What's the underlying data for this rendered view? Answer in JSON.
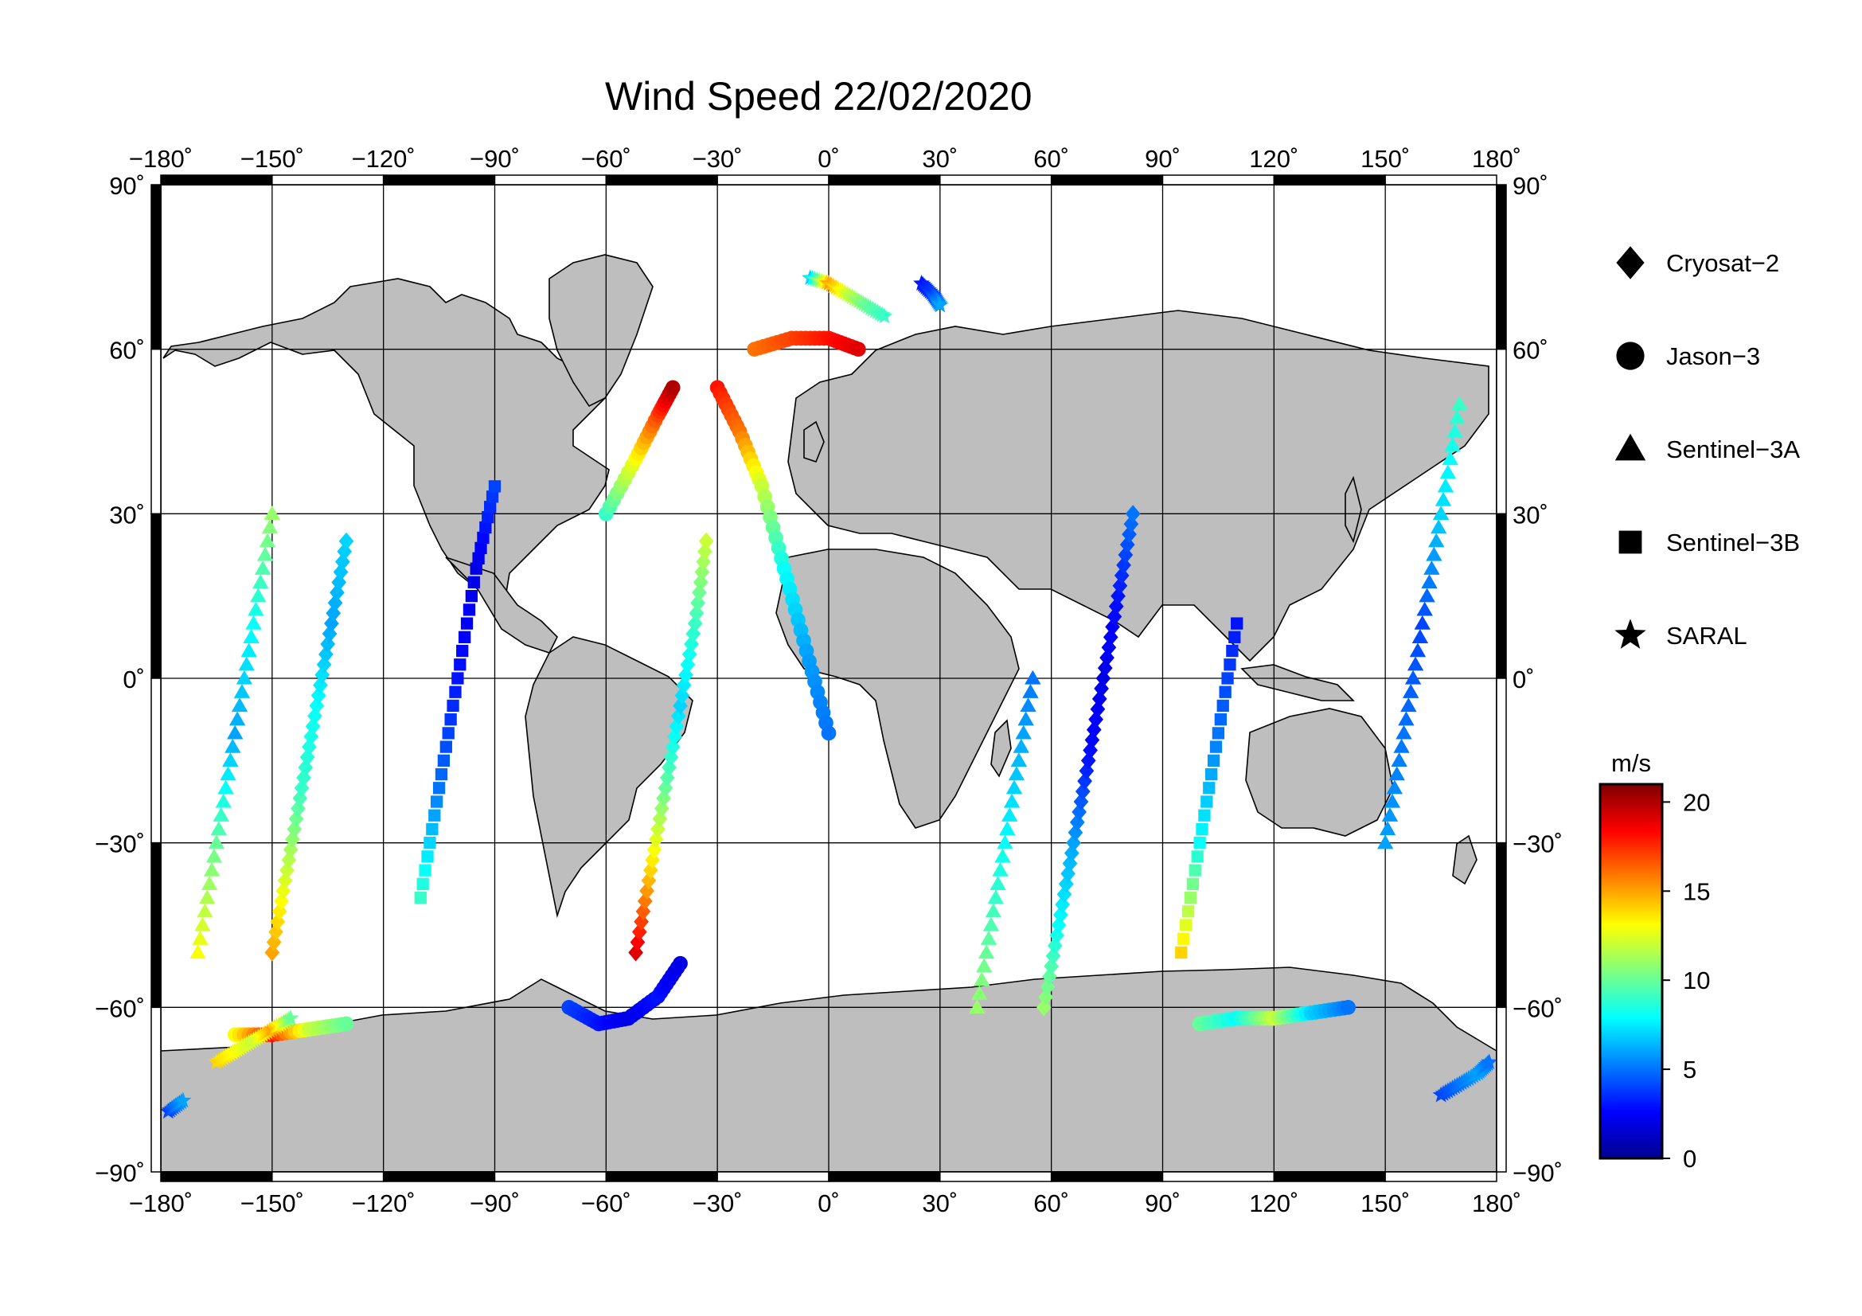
{
  "title": "Wind Speed 22/02/2020",
  "map": {
    "lon_ticks": [
      "−180˚",
      "−150˚",
      "−120˚",
      "−90˚",
      "−60˚",
      "−30˚",
      "0˚",
      "30˚",
      "60˚",
      "90˚",
      "120˚",
      "150˚",
      "180˚"
    ],
    "lat_ticks": [
      "90˚",
      "60˚",
      "30˚",
      "0˚",
      "−30˚",
      "−60˚",
      "−90˚"
    ],
    "lon_range": [
      -180,
      180
    ],
    "lat_range": [
      -90,
      90
    ],
    "grid": true,
    "land_color": "#bebebe",
    "ocean_color": "#ffffff"
  },
  "legend": {
    "items": [
      {
        "label": "Cryosat−2",
        "marker": "diamond"
      },
      {
        "label": "Jason−3",
        "marker": "circle"
      },
      {
        "label": "Sentinel−3A",
        "marker": "triangle"
      },
      {
        "label": "Sentinel−3B",
        "marker": "square"
      },
      {
        "label": "SARAL",
        "marker": "star"
      }
    ]
  },
  "colorbar": {
    "unit": "m/s",
    "ticks": [
      "20",
      "15",
      "10",
      "5",
      "0"
    ],
    "range": [
      0,
      21
    ],
    "colormap": [
      "#00008f",
      "#0000ff",
      "#007fff",
      "#00ffff",
      "#7fff7f",
      "#ffff00",
      "#ff7f00",
      "#ff0000",
      "#7f0000"
    ]
  },
  "chart_data": {
    "type": "scatter",
    "title": "Wind Speed 22/02/2020",
    "xlabel": "",
    "ylabel": "",
    "xlim": [
      -180,
      180
    ],
    "ylim": [
      -90,
      90
    ],
    "value_unit": "m/s",
    "series": [
      {
        "name": "Cryosat−2",
        "marker": "diamond",
        "tracks": [
          {
            "lon": [
              -52,
              -48,
              -44,
              -40,
              -36,
              -33
            ],
            "lat": [
              -50,
              -35,
              -20,
              -5,
              10,
              25
            ],
            "wind": [
              19,
              14,
              10,
              7,
              9,
              12
            ]
          },
          {
            "lon": [
              58,
              62,
              66,
              70,
              74,
              78,
              82
            ],
            "lat": [
              -60,
              -45,
              -30,
              -15,
              0,
              15,
              30
            ],
            "wind": [
              11,
              8,
              6,
              3,
              2,
              3,
              5
            ]
          },
          {
            "lon": [
              -150,
              -146,
              -142,
              -138,
              -134,
              -130
            ],
            "lat": [
              -50,
              -35,
              -20,
              -5,
              10,
              25
            ],
            "wind": [
              15,
              12,
              9,
              8,
              6,
              7
            ]
          }
        ]
      },
      {
        "name": "Jason−3",
        "marker": "circle",
        "tracks": [
          {
            "lon": [
              -70,
              -62,
              -54,
              -46,
              -40
            ],
            "lat": [
              -60,
              -63,
              -62,
              -58,
              -52
            ],
            "wind": [
              4,
              3,
              2,
              3,
              2
            ]
          },
          {
            "lon": [
              -60,
              -52,
              -46,
              -42
            ],
            "lat": [
              30,
              40,
              48,
              53
            ],
            "wind": [
              9,
              13,
              17,
              20
            ]
          },
          {
            "lon": [
              -30,
              -24,
              -18,
              -12,
              -6,
              0
            ],
            "lat": [
              53,
              45,
              35,
              20,
              5,
              -10
            ],
            "wind": [
              18,
              16,
              12,
              8,
              6,
              5
            ]
          },
          {
            "lon": [
              -20,
              -10,
              0,
              8
            ],
            "lat": [
              60,
              62,
              62,
              60
            ],
            "wind": [
              16,
              17,
              18,
              19
            ]
          },
          {
            "lon": [
              -160,
              -150,
              -140,
              -130
            ],
            "lat": [
              -65,
              -65,
              -64,
              -63
            ],
            "wind": [
              13,
              18,
              12,
              10
            ]
          },
          {
            "lon": [
              100,
              110,
              120,
              130,
              140
            ],
            "lat": [
              -63,
              -62,
              -62,
              -61,
              -60
            ],
            "wind": [
              10,
              8,
              12,
              7,
              5
            ]
          }
        ]
      },
      {
        "name": "Sentinel−3A",
        "marker": "triangle",
        "tracks": [
          {
            "lon": [
              -170,
              -165,
              -160,
              -155,
              -150
            ],
            "lat": [
              -50,
              -30,
              -10,
              10,
              30
            ],
            "wind": [
              13,
              10,
              6,
              8,
              11
            ]
          },
          {
            "lon": [
              40,
              45,
              50,
              55
            ],
            "lat": [
              -60,
              -40,
              -20,
              0
            ],
            "wind": [
              11,
              9,
              7,
              5
            ]
          },
          {
            "lon": [
              150,
              155,
              160,
              165,
              170
            ],
            "lat": [
              -30,
              -10,
              10,
              30,
              50
            ],
            "wind": [
              6,
              5,
              4,
              7,
              9
            ]
          }
        ]
      },
      {
        "name": "Sentinel−3B",
        "marker": "square",
        "tracks": [
          {
            "lon": [
              -110,
              -105,
              -100,
              -95,
              -90
            ],
            "lat": [
              -40,
              -20,
              0,
              20,
              35
            ],
            "wind": [
              9,
              5,
              3,
              2,
              4
            ]
          },
          {
            "lon": [
              95,
              100,
              105,
              110
            ],
            "lat": [
              -50,
              -30,
              -10,
              10
            ],
            "wind": [
              14,
              8,
              5,
              3
            ]
          }
        ]
      },
      {
        "name": "SARAL",
        "marker": "star",
        "tracks": [
          {
            "lon": [
              -5,
              0,
              5,
              10,
              15
            ],
            "lat": [
              73,
              72,
              70,
              68,
              66
            ],
            "wind": [
              7,
              15,
              12,
              10,
              9
            ]
          },
          {
            "lon": [
              25,
              28,
              30
            ],
            "lat": [
              72,
              70,
              68
            ],
            "wind": [
              3,
              4,
              6
            ]
          },
          {
            "lon": [
              -165,
              -160,
              -155,
              -150,
              -145
            ],
            "lat": [
              -70,
              -68,
              -66,
              -64,
              -62
            ],
            "wind": [
              14,
              13,
              12,
              15,
              10
            ]
          },
          {
            "lon": [
              -178,
              -174
            ],
            "lat": [
              -79,
              -77
            ],
            "wind": [
              4,
              6
            ]
          },
          {
            "lon": [
              165,
              170,
              175,
              178
            ],
            "lat": [
              -76,
              -74,
              -72,
              -70
            ],
            "wind": [
              4,
              5,
              6,
              5
            ]
          }
        ]
      }
    ]
  }
}
